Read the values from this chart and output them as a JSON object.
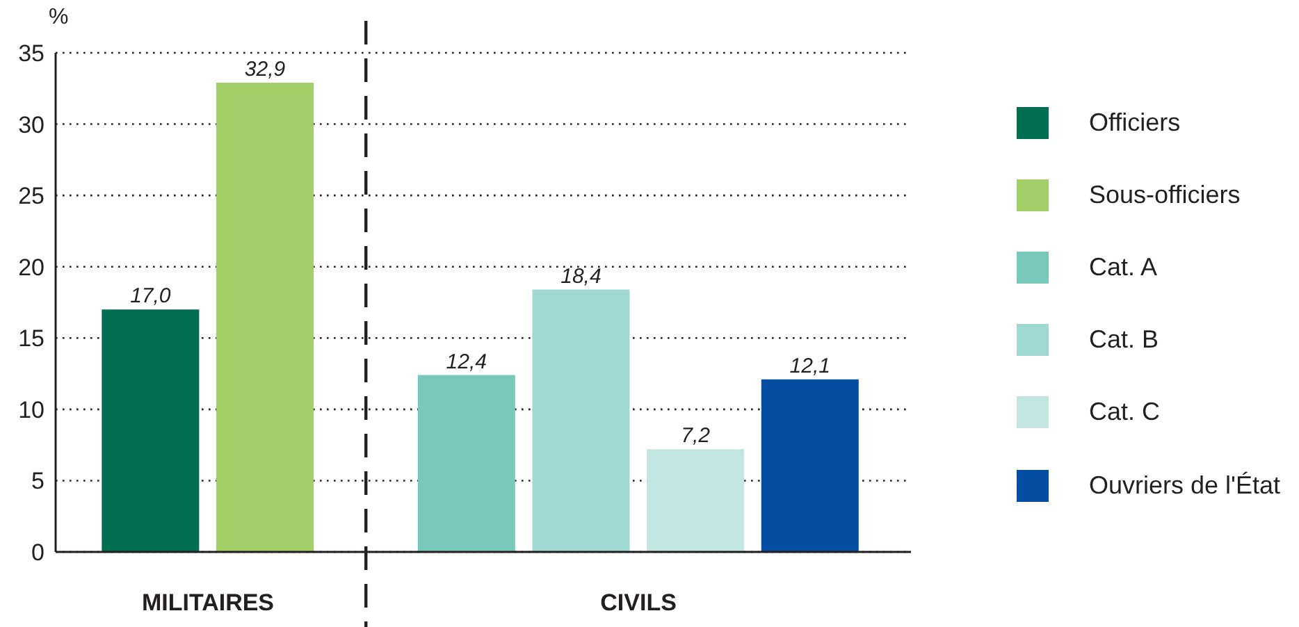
{
  "chart_data": {
    "type": "bar",
    "ylabel": "%",
    "categories": [
      "MILITAIRES",
      "CIVILS"
    ],
    "series": [
      {
        "name": "Officiers",
        "color": "#006e50",
        "values": [
          17.0,
          null
        ],
        "value_labels": [
          "17,0",
          null
        ]
      },
      {
        "name": "Sous-officiers",
        "color": "#a2cf68",
        "values": [
          32.9,
          null
        ],
        "value_labels": [
          "32,9",
          null
        ]
      },
      {
        "name": "Cat. A",
        "color": "#79c9ba",
        "values": [
          null,
          12.4
        ],
        "value_labels": [
          null,
          "12,4"
        ]
      },
      {
        "name": "Cat. B",
        "color": "#9fd9d2",
        "values": [
          null,
          18.4
        ],
        "value_labels": [
          null,
          "18,4"
        ]
      },
      {
        "name": "Cat. C",
        "color": "#c3e5df",
        "values": [
          null,
          7.2
        ],
        "value_labels": [
          null,
          "7,2"
        ]
      },
      {
        "name": "Ouvriers de l'État",
        "color": "#034ea2",
        "values": [
          null,
          12.1
        ],
        "value_labels": [
          null,
          "12,1"
        ]
      }
    ],
    "ylim": [
      0,
      35
    ],
    "yticks": [
      0,
      5,
      10,
      15,
      20,
      25,
      30,
      35
    ],
    "grid": "y",
    "legend": "right"
  }
}
